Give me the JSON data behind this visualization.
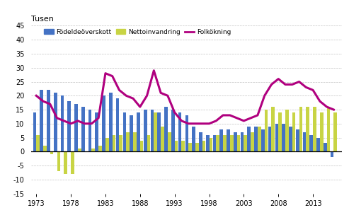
{
  "years": [
    1973,
    1974,
    1975,
    1976,
    1977,
    1978,
    1979,
    1980,
    1981,
    1982,
    1983,
    1984,
    1985,
    1986,
    1987,
    1988,
    1989,
    1990,
    1991,
    1992,
    1993,
    1994,
    1995,
    1996,
    1997,
    1998,
    1999,
    2000,
    2001,
    2002,
    2003,
    2004,
    2005,
    2006,
    2007,
    2008,
    2009,
    2010,
    2011,
    2012,
    2013,
    2014,
    2015,
    2016
  ],
  "fodelseoverskott": [
    14,
    22,
    22,
    21,
    20,
    18,
    17,
    16,
    15,
    14,
    20,
    21,
    19,
    14,
    13,
    14,
    15,
    15,
    14,
    16,
    15,
    14,
    13,
    9,
    7,
    6,
    6,
    8,
    8,
    7,
    7,
    9,
    9,
    8,
    9,
    10,
    10,
    9,
    8,
    7,
    6,
    5,
    3,
    -2
  ],
  "nettoinvandring": [
    6,
    2,
    -1,
    -7,
    -8,
    -8,
    1,
    0,
    1,
    2,
    5,
    6,
    6,
    7,
    7,
    4,
    6,
    14,
    9,
    7,
    4,
    4,
    3,
    3,
    4,
    5,
    6,
    6,
    6,
    6,
    6,
    7,
    9,
    15,
    16,
    14,
    15,
    14,
    16,
    16,
    16,
    14,
    16,
    14
  ],
  "folkoekning": [
    20,
    18,
    17,
    12,
    11,
    10,
    11,
    10,
    10,
    12,
    28,
    27,
    22,
    20,
    19,
    16,
    20,
    29,
    21,
    20,
    14,
    11,
    10,
    10,
    10,
    10,
    11,
    13,
    13,
    12,
    11,
    12,
    13,
    20,
    24,
    26,
    24,
    24,
    25,
    23,
    22,
    18,
    16,
    15
  ],
  "title": "Tusen",
  "ylim": [
    -15,
    45
  ],
  "yticks": [
    -15,
    -10,
    -5,
    0,
    5,
    10,
    15,
    20,
    25,
    30,
    35,
    40,
    45
  ],
  "bar_color_birth": "#4472c4",
  "bar_color_net": "#c8d444",
  "line_color": "#b0007f",
  "background_color": "#ffffff",
  "grid_color": "#c0c0c0",
  "legend_labels": [
    "Födeldeöverskott",
    "Nettoinvandring",
    "Folkökning"
  ],
  "xtick_positions": [
    1973,
    1978,
    1983,
    1988,
    1993,
    1998,
    2003,
    2008,
    2013
  ],
  "xlim": [
    1972.3,
    2017.2
  ]
}
